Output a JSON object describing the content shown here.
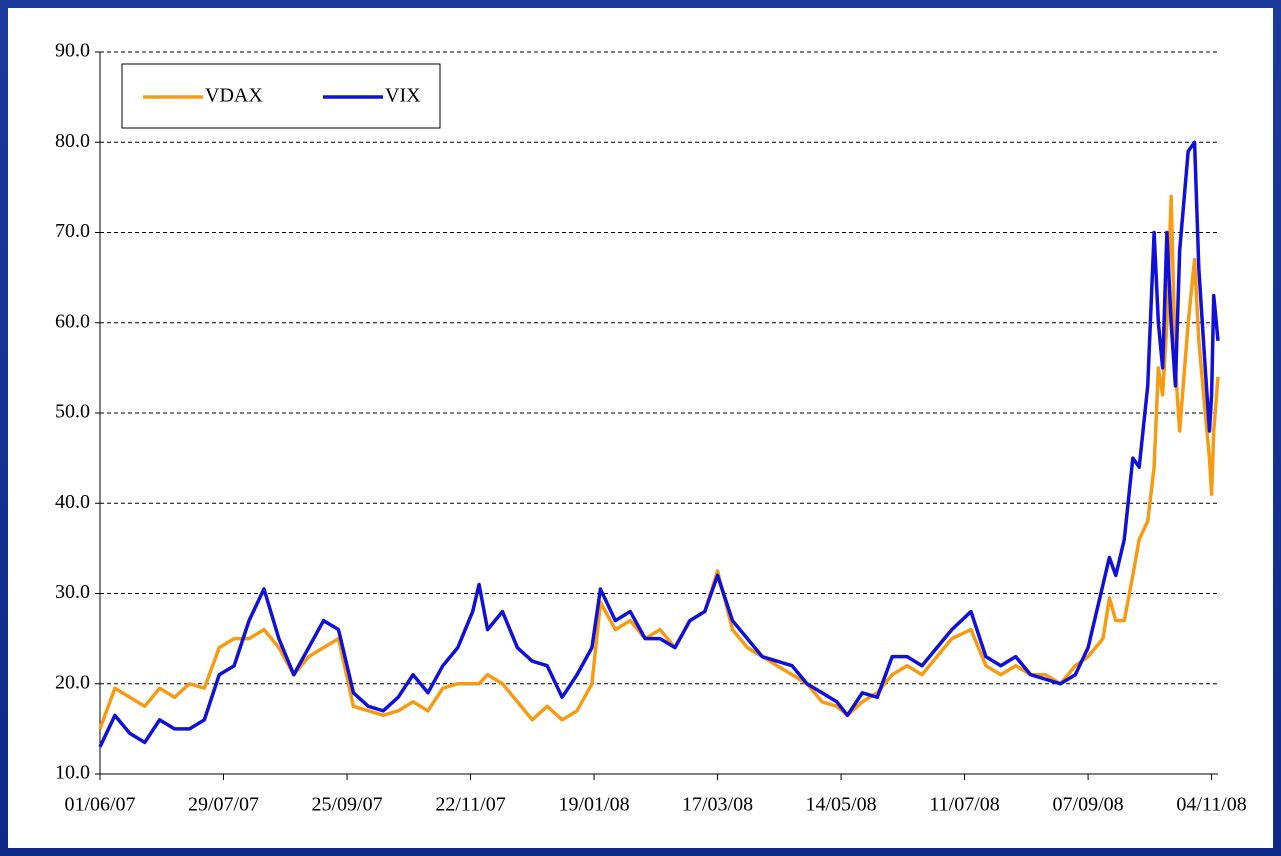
{
  "chart_data": {
    "type": "line",
    "x": [
      "2007-06-01",
      "2007-06-08",
      "2007-06-15",
      "2007-06-22",
      "2007-06-29",
      "2007-07-06",
      "2007-07-13",
      "2007-07-20",
      "2007-07-27",
      "2007-08-03",
      "2007-08-10",
      "2007-08-17",
      "2007-08-24",
      "2007-08-31",
      "2007-09-07",
      "2007-09-14",
      "2007-09-21",
      "2007-09-28",
      "2007-10-05",
      "2007-10-12",
      "2007-10-19",
      "2007-10-26",
      "2007-11-02",
      "2007-11-09",
      "2007-11-16",
      "2007-11-23",
      "2007-11-26",
      "2007-11-30",
      "2007-12-07",
      "2007-12-14",
      "2007-12-21",
      "2007-12-28",
      "2008-01-04",
      "2008-01-11",
      "2008-01-18",
      "2008-01-22",
      "2008-01-29",
      "2008-02-05",
      "2008-02-12",
      "2008-02-19",
      "2008-02-26",
      "2008-03-04",
      "2008-03-11",
      "2008-03-17",
      "2008-03-24",
      "2008-03-31",
      "2008-04-07",
      "2008-04-14",
      "2008-04-21",
      "2008-04-28",
      "2008-05-05",
      "2008-05-12",
      "2008-05-17",
      "2008-05-24",
      "2008-05-31",
      "2008-06-07",
      "2008-06-14",
      "2008-06-21",
      "2008-06-28",
      "2008-07-05",
      "2008-07-14",
      "2008-07-21",
      "2008-07-28",
      "2008-08-04",
      "2008-08-11",
      "2008-08-18",
      "2008-08-25",
      "2008-09-01",
      "2008-09-07",
      "2008-09-14",
      "2008-09-17",
      "2008-09-20",
      "2008-09-24",
      "2008-09-28",
      "2008-10-01",
      "2008-10-05",
      "2008-10-08",
      "2008-10-10",
      "2008-10-12",
      "2008-10-14",
      "2008-10-16",
      "2008-10-18",
      "2008-10-20",
      "2008-10-24",
      "2008-10-27",
      "2008-10-29",
      "2008-11-01",
      "2008-11-03",
      "2008-11-04",
      "2008-11-05",
      "2008-11-07"
    ],
    "series": [
      {
        "name": "VDAX",
        "color": "#f59c14",
        "values": [
          15,
          19.5,
          18.5,
          17.5,
          19.5,
          18.5,
          20,
          19.5,
          24,
          25,
          25,
          26,
          24,
          21,
          23,
          24,
          25,
          17.5,
          17,
          16.5,
          17,
          18,
          17,
          19.5,
          20,
          20,
          20,
          21,
          20,
          18,
          16,
          17.5,
          16,
          17,
          20,
          29,
          26,
          27,
          25,
          26,
          24,
          27,
          28,
          32.5,
          26,
          24,
          23,
          22,
          21,
          20,
          18,
          17.5,
          16.5,
          18,
          19,
          21,
          22,
          21,
          23,
          25,
          26,
          22,
          21,
          22,
          21,
          21,
          20,
          22,
          23,
          25,
          29.5,
          27,
          27,
          32,
          36,
          38,
          44,
          55,
          52,
          60,
          74,
          55,
          48,
          60,
          67,
          58,
          50,
          45,
          41,
          48,
          54
        ]
      },
      {
        "name": "VIX",
        "color": "#1010d8",
        "values": [
          13,
          16.5,
          14.5,
          13.5,
          16,
          15,
          15,
          16,
          21,
          22,
          27,
          30.5,
          25,
          21,
          24,
          27,
          26,
          19,
          17.5,
          17,
          18.5,
          21,
          19,
          22,
          24,
          28,
          31,
          26,
          28,
          24,
          22.5,
          22,
          18.5,
          21,
          24,
          30.5,
          27,
          28,
          25,
          25,
          24,
          27,
          28,
          32,
          27,
          25,
          23,
          22.5,
          22,
          20,
          19,
          18,
          16.5,
          19,
          18.5,
          23,
          23,
          22,
          24,
          26,
          28,
          23,
          22,
          23,
          21,
          20.5,
          20,
          21,
          24,
          31,
          34,
          32,
          36,
          45,
          44,
          53,
          70,
          60,
          55,
          70,
          60,
          53,
          68,
          79,
          80,
          66,
          55,
          48,
          52,
          63,
          58
        ]
      }
    ],
    "xlim": [
      "2007-06-01",
      "2008-11-07"
    ],
    "xticks": [
      {
        "value": "2007-06-01",
        "label": "01/06/07"
      },
      {
        "value": "2007-07-29",
        "label": "29/07/07"
      },
      {
        "value": "2007-09-25",
        "label": "25/09/07"
      },
      {
        "value": "2007-11-22",
        "label": "22/11/07"
      },
      {
        "value": "2008-01-19",
        "label": "19/01/08"
      },
      {
        "value": "2008-03-17",
        "label": "17/03/08"
      },
      {
        "value": "2008-05-14",
        "label": "14/05/08"
      },
      {
        "value": "2008-07-11",
        "label": "11/07/08"
      },
      {
        "value": "2008-09-07",
        "label": "07/09/08"
      },
      {
        "value": "2008-11-04",
        "label": "04/11/08"
      }
    ],
    "ylim": [
      10,
      90
    ],
    "yticks": [
      {
        "value": 10,
        "label": "10.0"
      },
      {
        "value": 20,
        "label": "20.0"
      },
      {
        "value": 30,
        "label": "30.0"
      },
      {
        "value": 40,
        "label": "40.0"
      },
      {
        "value": 50,
        "label": "50.0"
      },
      {
        "value": 60,
        "label": "60.0"
      },
      {
        "value": 70,
        "label": "70.0"
      },
      {
        "value": 80,
        "label": "80.0"
      },
      {
        "value": 90,
        "label": "90.0"
      }
    ],
    "grid": true,
    "legend": "top-left"
  }
}
